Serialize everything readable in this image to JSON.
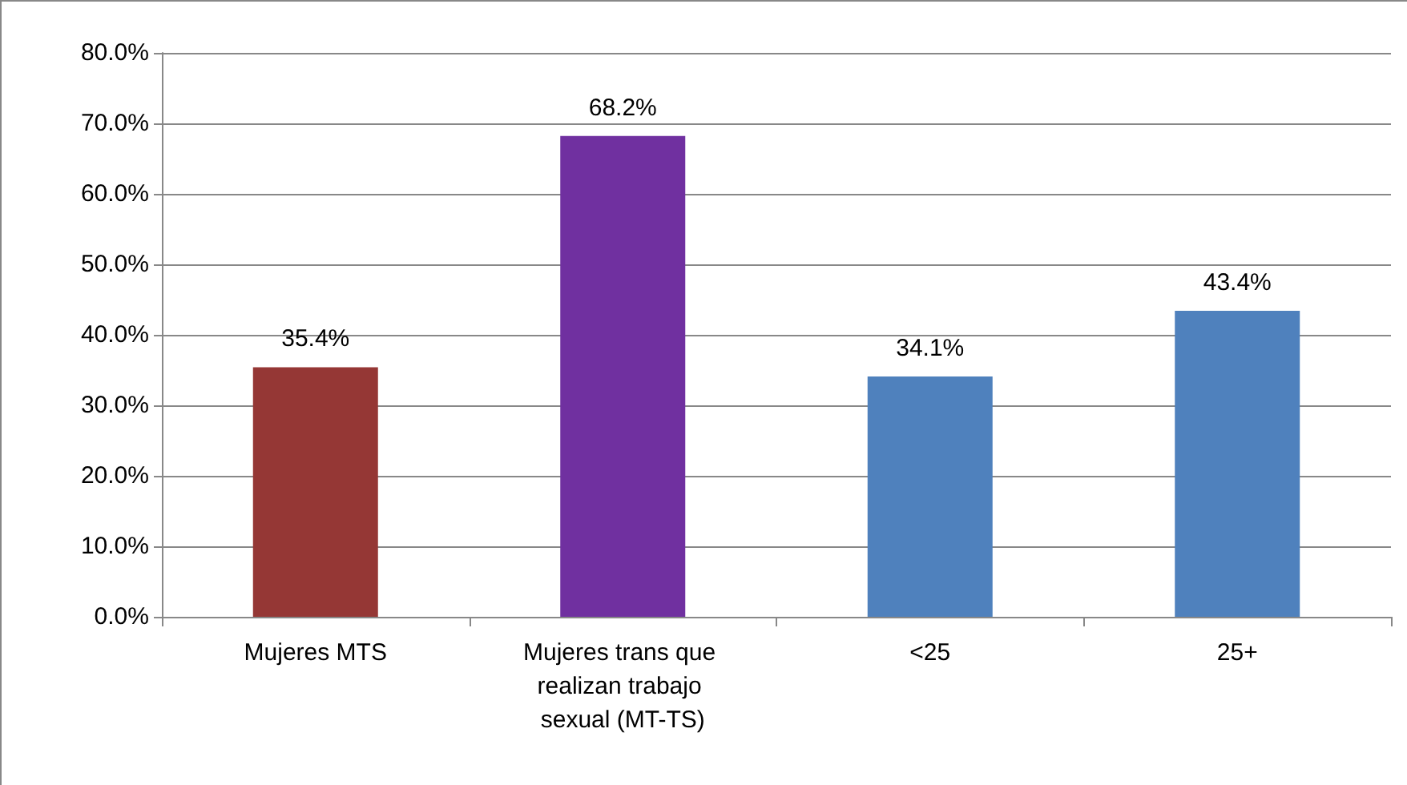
{
  "chart_data": {
    "type": "bar",
    "categories": [
      "Mujeres MTS",
      "Mujeres trans que realizan trabajo sexual (MT-TS)",
      "<25",
      "25+"
    ],
    "values": [
      35.4,
      68.2,
      34.1,
      43.4
    ],
    "colors": [
      "#953735",
      "#7030a0",
      "#4f81bd",
      "#4f81bd"
    ],
    "value_labels": [
      "35.4%",
      "68.2%",
      "34.1%",
      "43.4%"
    ],
    "ylim": [
      0,
      80
    ],
    "yticks": [
      {
        "value": 0,
        "label": "0.0%"
      },
      {
        "value": 10,
        "label": "10.0%"
      },
      {
        "value": 20,
        "label": "20.0%"
      },
      {
        "value": 30,
        "label": "30.0%"
      },
      {
        "value": 40,
        "label": "40.0%"
      },
      {
        "value": 50,
        "label": "50.0%"
      },
      {
        "value": 60,
        "label": "60.0%"
      },
      {
        "value": 70,
        "label": "70.0%"
      },
      {
        "value": 80,
        "label": "80.0%"
      }
    ],
    "grid": true
  }
}
